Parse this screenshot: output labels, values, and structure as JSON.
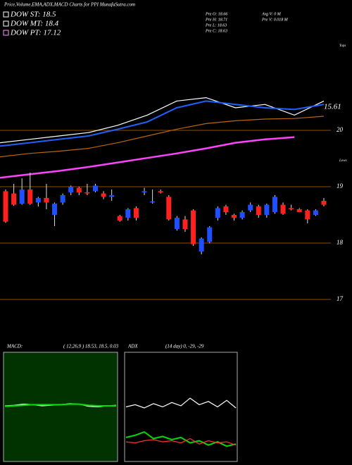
{
  "chart_data": [
    {
      "type": "candlestick",
      "title": "Price,Volume,EMA,ADX,MACD Charts for PPI MunafaSutra.com",
      "legend": [
        "DOW ST: 18.5",
        "DOW MT: 18.4",
        "DOW PT: 17.12"
      ],
      "legend_colors": [
        "#ffffff",
        "#ffffff",
        "#ff99ff"
      ],
      "info": [
        "Pre  O: 18.66",
        "Pre  H: 18.71",
        "Pre  L: 18.63",
        "Pre  C: 18.63",
        "Avg  V: 0  M",
        "Pre  V: 0.018 M"
      ],
      "annotations": [
        "15.61",
        "Tops",
        "Lows"
      ],
      "ylim": [
        17,
        22.25
      ],
      "yticks": [
        17,
        18,
        19,
        20
      ],
      "up_color": "#1e50ff",
      "down_color": "#ff2020",
      "open": [
        18.92,
        18.88,
        18.7,
        18.95,
        18.72,
        18.8,
        18.5,
        18.72,
        18.9,
        18.98,
        18.9,
        18.92,
        18.88,
        18.82,
        18.48,
        18.45,
        18.62,
        18.9,
        18.72,
        18.92,
        18.82,
        18.25,
        18.42,
        18.58,
        17.85,
        18.02,
        18.45,
        18.65,
        18.5,
        18.45,
        18.58,
        18.65,
        18.5,
        18.55,
        18.68,
        18.62,
        18.6,
        18.58,
        18.5,
        18.75
      ],
      "high": [
        18.95,
        19.05,
        19.15,
        19.25,
        18.82,
        19.05,
        18.72,
        18.88,
        19.02,
        19.0,
        19.05,
        19.05,
        18.92,
        18.95,
        18.5,
        18.62,
        18.65,
        18.98,
        18.95,
        18.95,
        18.85,
        18.48,
        18.48,
        18.6,
        18.1,
        18.3,
        18.65,
        18.68,
        18.52,
        18.58,
        18.72,
        18.68,
        18.7,
        18.85,
        18.72,
        18.68,
        18.62,
        18.6,
        18.6,
        18.8
      ],
      "low": [
        18.36,
        18.66,
        18.68,
        18.68,
        18.65,
        18.6,
        18.3,
        18.68,
        18.85,
        18.85,
        18.85,
        18.9,
        18.78,
        18.75,
        18.38,
        18.4,
        18.4,
        18.85,
        18.7,
        18.88,
        18.4,
        18.22,
        18.2,
        17.95,
        17.8,
        18.0,
        18.4,
        18.5,
        18.4,
        18.42,
        18.55,
        18.45,
        18.45,
        18.52,
        18.5,
        18.58,
        18.55,
        18.35,
        18.48,
        18.65
      ],
      "close": [
        18.38,
        18.68,
        18.95,
        18.7,
        18.8,
        18.72,
        18.7,
        18.85,
        19.0,
        18.9,
        18.88,
        19.02,
        18.82,
        18.85,
        18.4,
        18.6,
        18.45,
        18.92,
        18.74,
        18.9,
        18.42,
        18.45,
        18.25,
        17.98,
        18.08,
        18.28,
        18.62,
        18.55,
        18.45,
        18.55,
        18.68,
        18.5,
        18.68,
        18.82,
        18.52,
        18.6,
        18.55,
        18.42,
        18.58,
        18.68
      ],
      "series": [
        {
          "color": "#ffffff",
          "values": [
            19.78,
            19.84,
            19.9,
            19.96,
            20.09,
            20.27,
            20.52,
            20.58,
            20.4,
            20.46,
            20.27,
            20.52
          ]
        },
        {
          "color": "#2060ff",
          "values": [
            19.72,
            19.78,
            19.84,
            19.9,
            20.02,
            20.15,
            20.4,
            20.52,
            20.46,
            20.4,
            20.37,
            20.46
          ]
        },
        {
          "color": "#b8680a",
          "values": [
            19.53,
            19.59,
            19.63,
            19.68,
            19.78,
            19.9,
            20.02,
            20.12,
            20.17,
            20.2,
            20.21,
            20.25
          ]
        },
        {
          "color": "#ff44ff",
          "values": [
            19.16,
            19.22,
            19.28,
            19.35,
            19.43,
            19.51,
            19.59,
            19.68,
            19.78,
            19.84,
            19.88,
            null
          ]
        }
      ]
    },
    {
      "type": "line",
      "title": "MACD:",
      "subtitle": "( 12,26,9 ) 18.53, 18.5, 0.03",
      "ylim": [
        -1,
        1
      ],
      "series": [
        {
          "color": "#ffffff",
          "values": [
            0.02,
            0.03,
            0.05,
            0.04,
            0.02,
            0.03,
            0.04,
            0.06,
            0.05,
            0.01,
            0.0,
            0.02,
            0.03
          ]
        },
        {
          "color": "#00dd00",
          "values": [
            0.01,
            0.02,
            0.03,
            0.04,
            0.04,
            0.04,
            0.04,
            0.05,
            0.05,
            0.03,
            0.02,
            0.02,
            0.02
          ]
        }
      ]
    },
    {
      "type": "line",
      "title": "ADX",
      "subtitle": "(14 day) 0, -29, -29",
      "ylim": [
        0,
        100
      ],
      "series": [
        {
          "color": "#ffffff",
          "values": [
            50,
            52,
            49,
            53,
            50,
            54,
            51,
            58,
            52,
            55,
            50,
            56,
            49
          ]
        },
        {
          "color": "#00dd00",
          "values": [
            22,
            24,
            27,
            21,
            23,
            20,
            22,
            17,
            19,
            15,
            18,
            14,
            16
          ]
        },
        {
          "color": "#ff3030",
          "values": [
            18,
            17,
            19,
            20,
            18,
            19,
            17,
            21,
            16,
            19,
            17,
            18,
            15
          ]
        }
      ]
    }
  ]
}
